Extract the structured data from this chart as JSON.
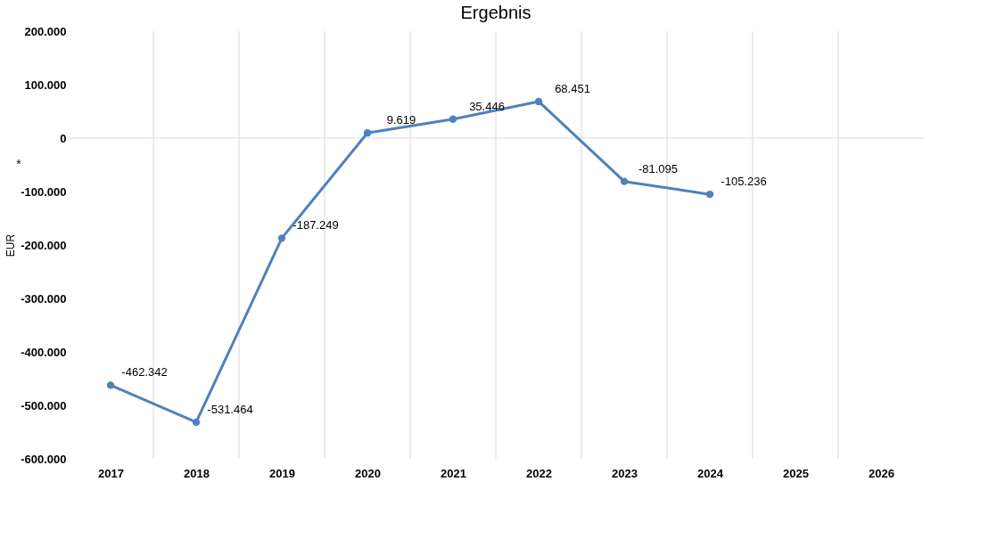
{
  "chart_data": {
    "type": "line",
    "title": "Ergebnis",
    "ylabel": "EUR",
    "annotations": [
      "*"
    ],
    "categories": [
      "2017",
      "2018",
      "2019",
      "2020",
      "2021",
      "2022",
      "2023",
      "2024",
      "2025",
      "2026"
    ],
    "series": [
      {
        "color": "#4f81bd",
        "values": [
          -462342,
          -531464,
          -187249,
          9619,
          35446,
          68451,
          -81095,
          -105236,
          null,
          null
        ],
        "value_labels": [
          "-462.342",
          "-531.464",
          "-187.249",
          "9.619",
          "35.446",
          "68.451",
          "-81.095",
          "-105.236",
          null,
          null
        ]
      }
    ],
    "ylim": [
      -600000,
      200000
    ],
    "yticks": [
      {
        "value": -600000,
        "label": "-600.000"
      },
      {
        "value": -500000,
        "label": "-500.000"
      },
      {
        "value": -400000,
        "label": "-400.000"
      },
      {
        "value": -300000,
        "label": "-300.000"
      },
      {
        "value": -200000,
        "label": "-200.000"
      },
      {
        "value": -100000,
        "label": "-100.000"
      },
      0,
      {
        "value": 100000,
        "label": "100.000"
      },
      {
        "value": 200000,
        "label": "200.000"
      }
    ],
    "ref_lines": [
      {
        "axis": "y",
        "value": 0,
        "color": "#d9d9d9"
      }
    ],
    "grid": "x",
    "legend": false,
    "marker": "circle",
    "line_style": "solid"
  }
}
